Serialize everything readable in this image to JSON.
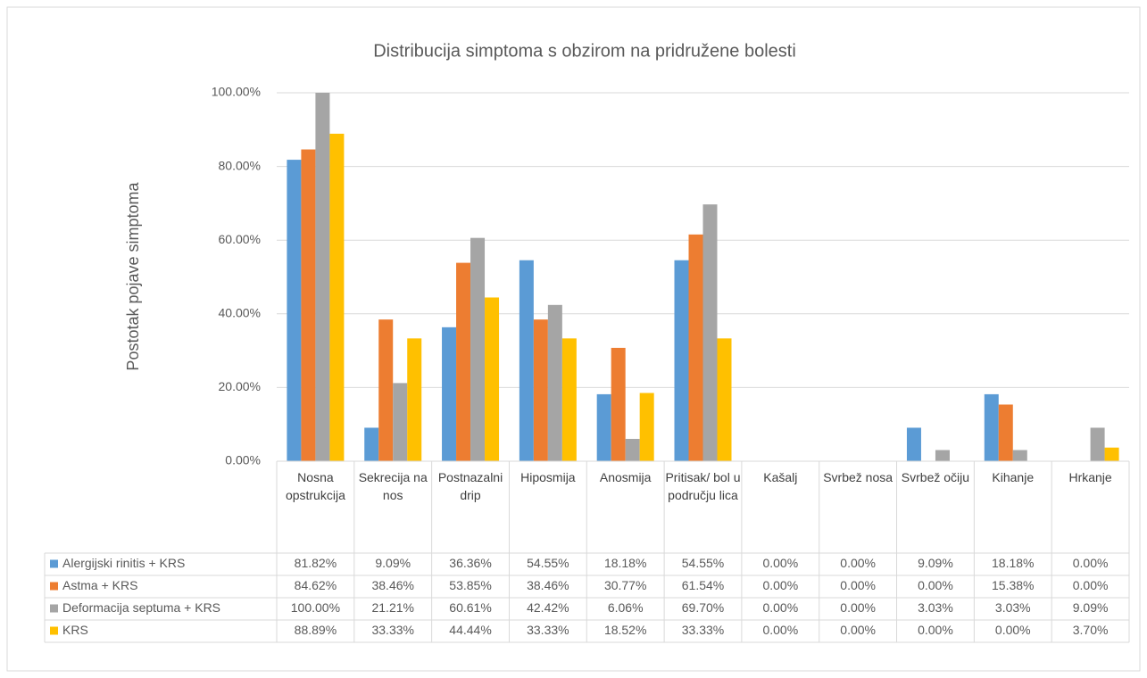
{
  "chart_data": {
    "type": "bar",
    "title": "Distribucija simptoma s obzirom na pridružene bolesti",
    "y_label": "Postotak pojave simptoma",
    "categories": [
      "Nosna opstrukcija",
      "Sekrecija na nos",
      "Postnazalni drip",
      "Hiposmija",
      "Anosmija",
      "Pritisak/ bol u području lica",
      "Kašalj",
      "Svrbež nosa",
      "Svrbež očiju",
      "Kihanje",
      "Hrkanje"
    ],
    "series": [
      {
        "name": "Alergijski rinitis + KRS",
        "color": "#5b9bd5",
        "values": [
          81.82,
          9.09,
          36.36,
          54.55,
          18.18,
          54.55,
          0,
          0,
          9.09,
          18.18,
          0
        ],
        "value_labels": [
          "81.82%",
          "9.09%",
          "36.36%",
          "54.55%",
          "18.18%",
          "54.55%",
          "0.00%",
          "0.00%",
          "9.09%",
          "18.18%",
          "0.00%"
        ]
      },
      {
        "name": "Astma + KRS",
        "color": "#ed7d31",
        "values": [
          84.62,
          38.46,
          53.85,
          38.46,
          30.77,
          61.54,
          0,
          0,
          0,
          15.38,
          0
        ],
        "value_labels": [
          "84.62%",
          "38.46%",
          "53.85%",
          "38.46%",
          "30.77%",
          "61.54%",
          "0.00%",
          "0.00%",
          "0.00%",
          "15.38%",
          "0.00%"
        ]
      },
      {
        "name": "Deformacija septuma + KRS",
        "color": "#a5a5a5",
        "values": [
          100,
          21.21,
          60.61,
          42.42,
          6.06,
          69.7,
          0,
          0,
          3.03,
          3.03,
          9.09
        ],
        "value_labels": [
          "100.00%",
          "21.21%",
          "60.61%",
          "42.42%",
          "6.06%",
          "69.70%",
          "0.00%",
          "0.00%",
          "3.03%",
          "3.03%",
          "9.09%"
        ]
      },
      {
        "name": "KRS",
        "color": "#ffc000",
        "values": [
          88.89,
          33.33,
          44.44,
          33.33,
          18.52,
          33.33,
          0,
          0,
          0,
          0,
          3.7
        ],
        "value_labels": [
          "88.89%",
          "33.33%",
          "44.44%",
          "33.33%",
          "18.52%",
          "33.33%",
          "0.00%",
          "0.00%",
          "0.00%",
          "0.00%",
          "3.70%"
        ]
      }
    ],
    "ylim": [
      0,
      100
    ],
    "yticks": [
      {
        "value": 0,
        "label": "0.00%"
      },
      {
        "value": 20,
        "label": "20.00%"
      },
      {
        "value": 40,
        "label": "40.00%"
      },
      {
        "value": 60,
        "label": "60.00%"
      },
      {
        "value": 80,
        "label": "80.00%"
      },
      {
        "value": 100,
        "label": "100.00%"
      }
    ],
    "grid": true
  }
}
